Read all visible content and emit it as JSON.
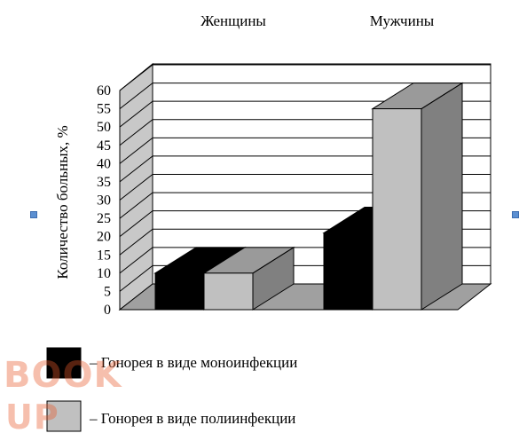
{
  "chart_data": {
    "type": "bar",
    "categories": [
      "Женщины",
      "Мужчины"
    ],
    "series": [
      {
        "name": "– Гонорея в виде моноинфекции",
        "values": [
          10,
          21
        ],
        "color": "#000000"
      },
      {
        "name": "– Гонорея в виде полиинфекции",
        "values": [
          10,
          55
        ],
        "color": "#c0c0c0"
      }
    ],
    "ylabel": "Количество больных, %",
    "ylim": [
      0,
      60
    ],
    "yticks": [
      0,
      5,
      10,
      15,
      20,
      25,
      30,
      35,
      40,
      45,
      50,
      55,
      60
    ],
    "grid": true,
    "legend_position": "bottom-left",
    "style": "3d-column"
  },
  "watermark": {
    "top": "BOOK",
    "bottom": "UP"
  },
  "colors": {
    "wall_side": "#c8c8c8",
    "floor": "#a0a0a0",
    "handle": "#5b8fd1"
  }
}
